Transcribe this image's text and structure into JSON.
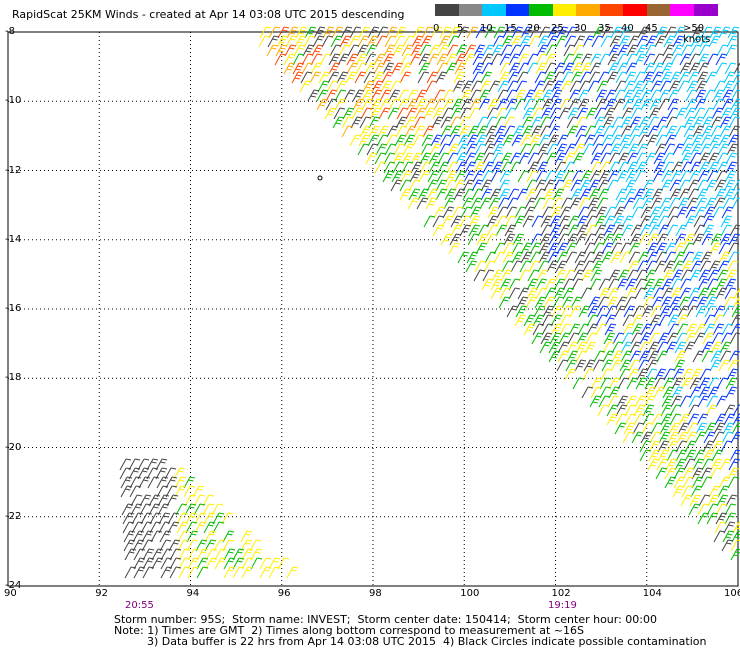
{
  "title": "RapidScat 25KM Winds - created at Apr 14 03:08 UTC 2015 descending",
  "colorbar": {
    "labels": [
      "0",
      "5",
      "10",
      "15",
      "20",
      "25",
      "30",
      "35",
      "40",
      "45",
      ">50 knots"
    ],
    "colors": [
      "#444444",
      "#888888",
      "#00c8ff",
      "#0033ff",
      "#00bb00",
      "#ffee00",
      "#ffaa00",
      "#ff4400",
      "#ff0000",
      "#996633",
      "#ff00ff",
      "#9900cc"
    ]
  },
  "y_axis": {
    "labels": [
      "-8",
      "-10",
      "-12",
      "-14",
      "-16",
      "-18",
      "-20",
      "-22",
      "-24"
    ]
  },
  "x_axis": {
    "labels": [
      "90",
      "92",
      "94",
      "96",
      "98",
      "100",
      "102",
      "104",
      "106"
    ]
  },
  "time_labels": [
    "20:55",
    "19:19"
  ],
  "footer": {
    "line1": "Storm number: 95S;  Storm name: INVEST;  Storm center date: 150414;  Storm center hour: 00:00",
    "line2": "Note: 1) Times are GMT  2) Times along bottom correspond to measurement at ~16S",
    "line3": "3) Data buffer is 22 hrs from Apr 14 03:08 UTC 2015  4) Black Circles indicate possible contamination"
  }
}
